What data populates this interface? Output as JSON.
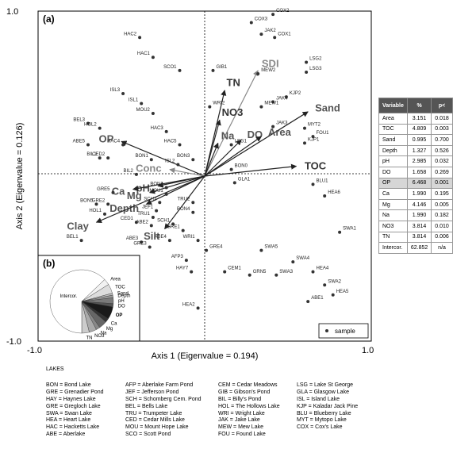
{
  "chart_data": {
    "type": "scatter",
    "panel_a_label": "(a)",
    "panel_b_label": "(b)",
    "xlabel": "Axis 1 (Eigenvalue = 0.194)",
    "ylabel": "Axis 2 (Eigenvalue = 0.126)",
    "xlim": [
      -1.0,
      1.0
    ],
    "ylim": [
      -1.0,
      1.0
    ],
    "x_ticks": [
      "-1.0",
      "1.0"
    ],
    "y_ticks": [
      "1.0",
      "-1.0"
    ],
    "legend": {
      "label": "sample",
      "placement": "bottom-right"
    },
    "samples": [
      {
        "label": "COX3",
        "x": 0.28,
        "y": 0.93
      },
      {
        "label": "COX2",
        "x": 0.41,
        "y": 0.98
      },
      {
        "label": "JAK2",
        "x": 0.34,
        "y": 0.86
      },
      {
        "label": "COX1",
        "x": 0.42,
        "y": 0.84
      },
      {
        "label": "HAC2",
        "x": -0.39,
        "y": 0.84
      },
      {
        "label": "HAC1",
        "x": -0.31,
        "y": 0.72
      },
      {
        "label": "SCO1",
        "x": -0.15,
        "y": 0.64
      },
      {
        "label": "GIB1",
        "x": 0.05,
        "y": 0.64
      },
      {
        "label": "LSG2",
        "x": 0.61,
        "y": 0.69
      },
      {
        "label": "LSG3",
        "x": 0.61,
        "y": 0.63
      },
      {
        "label": "MEW2",
        "x": 0.32,
        "y": 0.62
      },
      {
        "label": "ISL3",
        "x": -0.49,
        "y": 0.5
      },
      {
        "label": "ISL1",
        "x": -0.38,
        "y": 0.44
      },
      {
        "label": "KJP2",
        "x": 0.49,
        "y": 0.48
      },
      {
        "label": "JAK4",
        "x": 0.41,
        "y": 0.45
      },
      {
        "label": "MEW1",
        "x": 0.34,
        "y": 0.42
      },
      {
        "label": "WRI2",
        "x": 0.03,
        "y": 0.42
      },
      {
        "label": "MOU2",
        "x": -0.31,
        "y": 0.38
      },
      {
        "label": "BEL3",
        "x": -0.7,
        "y": 0.32
      },
      {
        "label": "HOL2",
        "x": -0.63,
        "y": 0.29
      },
      {
        "label": "JAK3",
        "x": 0.41,
        "y": 0.3
      },
      {
        "label": "MYT2",
        "x": 0.6,
        "y": 0.29
      },
      {
        "label": "HAC3",
        "x": -0.23,
        "y": 0.27
      },
      {
        "label": "KJP1",
        "x": 0.6,
        "y": 0.2
      },
      {
        "label": "LSG1",
        "x": 0.16,
        "y": 0.19
      },
      {
        "label": "FOU1",
        "x": 0.65,
        "y": 0.24
      },
      {
        "label": "HAC4",
        "x": -0.49,
        "y": 0.19
      },
      {
        "label": "HAC5",
        "x": -0.15,
        "y": 0.19
      },
      {
        "label": "ABE5",
        "x": -0.7,
        "y": 0.19
      },
      {
        "label": "BIL1",
        "x": -0.63,
        "y": 0.11
      },
      {
        "label": "CED2",
        "x": -0.58,
        "y": 0.11
      },
      {
        "label": "BON1",
        "x": -0.32,
        "y": 0.1
      },
      {
        "label": "BON3",
        "x": -0.07,
        "y": 0.1
      },
      {
        "label": "ISL2",
        "x": -0.16,
        "y": 0.07
      },
      {
        "label": "BON0",
        "x": 0.16,
        "y": 0.04
      },
      {
        "label": "BIL2",
        "x": -0.41,
        "y": 0.01
      },
      {
        "label": "GLA1",
        "x": 0.18,
        "y": -0.04
      },
      {
        "label": "BLU1",
        "x": 0.65,
        "y": -0.05
      },
      {
        "label": "HEA6",
        "x": 0.72,
        "y": -0.12
      },
      {
        "label": "GRE5",
        "x": -0.55,
        "y": -0.1
      },
      {
        "label": "BON2",
        "x": -0.23,
        "y": -0.07
      },
      {
        "label": "MOU1",
        "x": -0.23,
        "y": -0.11
      },
      {
        "label": "GRE2",
        "x": -0.58,
        "y": -0.17
      },
      {
        "label": "BON5",
        "x": -0.65,
        "y": -0.17
      },
      {
        "label": "HOL1",
        "x": -0.6,
        "y": -0.23
      },
      {
        "label": "SCH2",
        "x": -0.27,
        "y": -0.16
      },
      {
        "label": "TRU2",
        "x": -0.07,
        "y": -0.16
      },
      {
        "label": "JEF1",
        "x": -0.29,
        "y": -0.21
      },
      {
        "label": "TRU1",
        "x": -0.31,
        "y": -0.25
      },
      {
        "label": "CED1",
        "x": -0.41,
        "y": -0.28
      },
      {
        "label": "BON4",
        "x": -0.07,
        "y": -0.22
      },
      {
        "label": "ABE2",
        "x": -0.32,
        "y": -0.3
      },
      {
        "label": "SCH1",
        "x": -0.19,
        "y": -0.29
      },
      {
        "label": "GRE1",
        "x": -0.13,
        "y": -0.33
      },
      {
        "label": "SWA1",
        "x": 0.81,
        "y": -0.34
      },
      {
        "label": "BEL1",
        "x": -0.74,
        "y": -0.39
      },
      {
        "label": "ABE3",
        "x": -0.38,
        "y": -0.4
      },
      {
        "label": "ABE4",
        "x": -0.21,
        "y": -0.39
      },
      {
        "label": "WRI1",
        "x": -0.04,
        "y": -0.39
      },
      {
        "label": "GRE3",
        "x": -0.33,
        "y": -0.43
      },
      {
        "label": "GRE4",
        "x": 0.01,
        "y": -0.45
      },
      {
        "label": "SWA5",
        "x": 0.34,
        "y": -0.45
      },
      {
        "label": "AFP3",
        "x": -0.11,
        "y": -0.51
      },
      {
        "label": "SWA4",
        "x": 0.53,
        "y": -0.52
      },
      {
        "label": "HEA4",
        "x": 0.65,
        "y": -0.58
      },
      {
        "label": "HAY7",
        "x": -0.08,
        "y": -0.58
      },
      {
        "label": "CEM1",
        "x": 0.12,
        "y": -0.58
      },
      {
        "label": "GRN5",
        "x": 0.27,
        "y": -0.6
      },
      {
        "label": "SWA3",
        "x": 0.43,
        "y": -0.6
      },
      {
        "label": "SWA2",
        "x": 0.72,
        "y": -0.66
      },
      {
        "label": "ABE1",
        "x": 0.62,
        "y": -0.76
      },
      {
        "label": "HEA5",
        "x": 0.77,
        "y": -0.72
      },
      {
        "label": "HEA2",
        "x": -0.04,
        "y": -0.8
      }
    ],
    "vectors": [
      {
        "label": "SDI",
        "x": 0.32,
        "y": 0.64,
        "color": "#888888"
      },
      {
        "label": "TN",
        "x": 0.12,
        "y": 0.52,
        "color": "#333333"
      },
      {
        "label": "Sand",
        "x": 0.62,
        "y": 0.39,
        "color": "#555555"
      },
      {
        "label": "NO3",
        "x": 0.09,
        "y": 0.34,
        "color": "#333333"
      },
      {
        "label": "DO",
        "x": 0.22,
        "y": 0.22,
        "color": "#555555"
      },
      {
        "label": "Na",
        "x": 0.08,
        "y": 0.2,
        "color": "#555555"
      },
      {
        "label": "Area",
        "x": 0.34,
        "y": 0.24,
        "color": "#555555"
      },
      {
        "label": "TOC",
        "x": 0.55,
        "y": 0.06,
        "color": "#333333"
      },
      {
        "label": "OP",
        "x": -0.5,
        "y": 0.21,
        "color": "#555555"
      },
      {
        "label": "Conc",
        "x": -0.21,
        "y": 0.04,
        "color": "#888888"
      },
      {
        "label": "pH",
        "x": -0.28,
        "y": -0.06,
        "color": "#555555"
      },
      {
        "label": "Ca",
        "x": -0.43,
        "y": -0.08,
        "color": "#555555"
      },
      {
        "label": "Mg",
        "x": -0.33,
        "y": -0.1,
        "color": "#555555"
      },
      {
        "label": "Depth",
        "x": -0.35,
        "y": -0.17,
        "color": "#555555"
      },
      {
        "label": "Clay",
        "x": -0.65,
        "y": -0.28,
        "color": "#555555"
      },
      {
        "label": "Silt",
        "x": -0.24,
        "y": -0.32,
        "color": "#555555"
      }
    ],
    "inset_pie": {
      "labels": [
        "Area",
        "TOC",
        "Sand",
        "Depth",
        "pH",
        "DO",
        "OP",
        "Ca",
        "Mg",
        "Na",
        "NO3",
        "TN",
        "Intercor."
      ],
      "values": [
        3.151,
        4.809,
        0.995,
        1.327,
        2.985,
        1.658,
        6.468,
        1.99,
        4.146,
        1.99,
        3.814,
        3.814,
        62.852
      ]
    }
  },
  "variance_table": {
    "headers": [
      "Variable",
      "%",
      "p<"
    ],
    "rows": [
      [
        "Area",
        "3.151",
        "0.018"
      ],
      [
        "TOC",
        "4.809",
        "0.003"
      ],
      [
        "Sand",
        "0.995",
        "0.700"
      ],
      [
        "Depth",
        "1.327",
        "0.526"
      ],
      [
        "pH",
        "2.985",
        "0.032"
      ],
      [
        "DO",
        "1.658",
        "0.269"
      ],
      [
        "OP",
        "6.468",
        "0.001"
      ],
      [
        "Ca",
        "1.990",
        "0.195"
      ],
      [
        "Mg",
        "4.146",
        "0.005"
      ],
      [
        "Na",
        "1.990",
        "0.182"
      ],
      [
        "NO3",
        "3.814",
        "0.010"
      ],
      [
        "TN",
        "3.814",
        "0.006"
      ],
      [
        "Intercor.",
        "62.852",
        "n/a"
      ]
    ]
  },
  "lakes": {
    "title": "LAKES",
    "columns": [
      [
        "BON = Bond Lake",
        "GRE = Grenadier Pond",
        "HAY = Haynes Lake",
        "GRE = Gregloch Lake",
        "SWA = Swan Lake",
        "HEA = Heart Lake",
        "HAC = Hacketts Lake",
        "ABE = Aberlake"
      ],
      [
        "AFP = Aberlake Farm Pond",
        "JEF = Jefferson Pond",
        "SCH = Schomberg Cem. Pond",
        "BEL = Bells Lake",
        "TRU = Trumpeter Lake",
        "CED = Cedar Mills Lake",
        "MOU = Mount Hope Lake",
        "SCO = Scott Pond"
      ],
      [
        "CEM = Cedar Meadows",
        "GIB = Gibson's Pond",
        "BIL = Billy's Pond",
        "HOL = The Hollows Lake",
        "WRI = Wright Lake",
        "JAK = Jake Lake",
        "MEW = Mew Lake",
        "FOU = Found Lake"
      ],
      [
        "LSG = Lake St George",
        "GLA = Glasgow Lake",
        "ISL = Island Lake",
        "KJP = Kaladar Jack Pine",
        "BLU = Blueberry Lake",
        "MYT = Mytopo Lake",
        "COX = Cox's Lake"
      ]
    ]
  }
}
